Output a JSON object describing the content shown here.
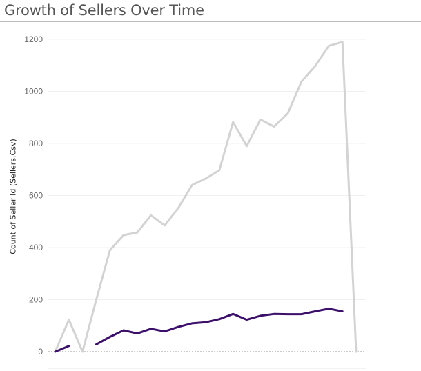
{
  "title": "Growth of Sellers Over Time",
  "chart_data": {
    "type": "line",
    "title": "Growth of Sellers Over Time",
    "xlabel": "",
    "ylabel": "Count of Seller Id (Sellers.Csv)",
    "ylim": [
      0,
      1250
    ],
    "yticks": [
      0,
      200,
      400,
      600,
      800,
      1000,
      1200
    ],
    "grid": true,
    "legend": "none",
    "series": [
      {
        "color": "#d3d3d3",
        "values": [
          0,
          123,
          0,
          200,
          390,
          448,
          458,
          524,
          485,
          552,
          640,
          665,
          697,
          882,
          790,
          892,
          865,
          915,
          1038,
          1097,
          1175,
          1190,
          0
        ]
      },
      {
        "color": "#3b0f6a",
        "values": [
          0,
          22,
          null,
          28,
          57,
          82,
          70,
          88,
          78,
          95,
          109,
          113,
          125,
          145,
          123,
          138,
          145,
          144,
          144,
          155,
          165,
          155,
          null
        ]
      }
    ]
  }
}
